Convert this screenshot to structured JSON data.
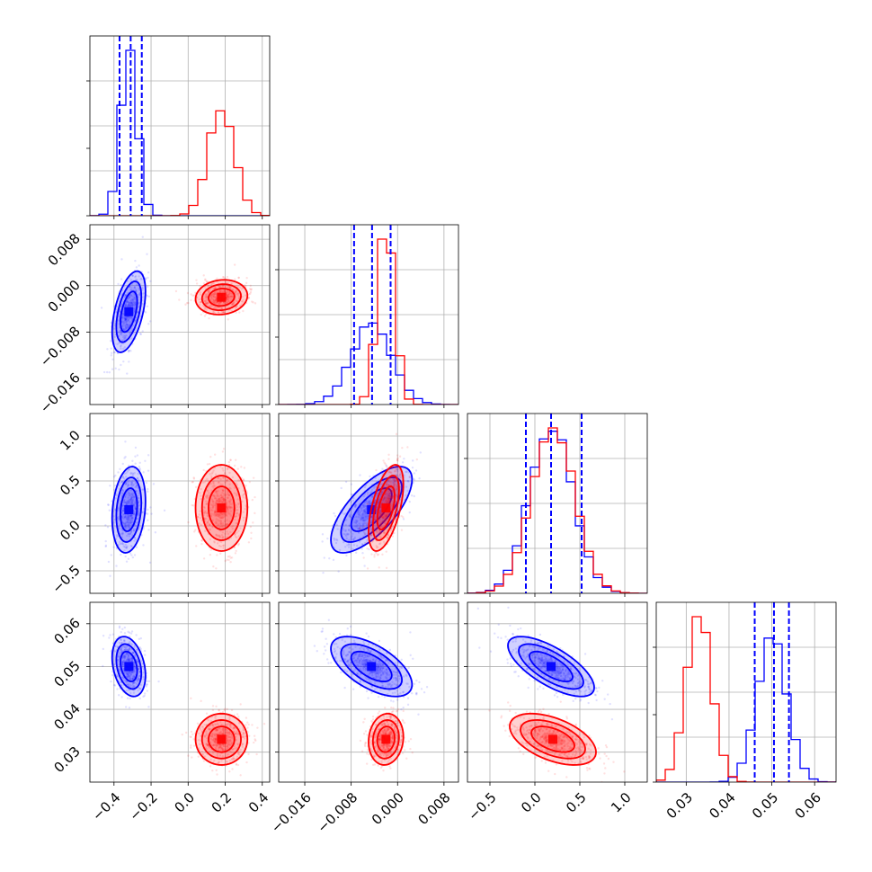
{
  "chart_data": {
    "type": "corner",
    "parameters": 4,
    "series": [
      {
        "color": "#0000ff",
        "means": [
          -0.32,
          -0.0045,
          0.18,
          0.05
        ],
        "sds": [
          0.045,
          0.0035,
          0.24,
          0.0035
        ],
        "corr": {
          "1-0": 0.5,
          "2-0": 0.2,
          "2-1": 0.7,
          "3-0": -0.3,
          "3-1": -0.6,
          "3-2": -0.7
        },
        "quantiles": [
          [
            -0.37,
            -0.31,
            -0.25
          ],
          [
            -0.0075,
            -0.0044,
            -0.0012
          ],
          [
            -0.1,
            0.18,
            0.52
          ],
          [
            0.046,
            0.0505,
            0.054
          ]
        ]
      },
      {
        "color": "#ff0000",
        "means": [
          0.18,
          -0.002,
          0.2,
          0.033
        ],
        "sds": [
          0.07,
          0.0015,
          0.24,
          0.003
        ],
        "corr": {
          "1-0": 0.1,
          "2-0": 0.0,
          "2-1": 0.55,
          "3-0": 0.0,
          "3-1": 0.1,
          "3-2": -0.5
        }
      }
    ],
    "axes": [
      {
        "lim": [
          -0.53,
          0.44
        ],
        "ticks": [
          -0.4,
          -0.2,
          0.0,
          0.2,
          0.4
        ],
        "labels": [
          "−0.4",
          "−0.2",
          "0.0",
          "0.2",
          "0.4"
        ]
      },
      {
        "lim": [
          -0.0205,
          0.0105
        ],
        "ticks": [
          -0.016,
          -0.008,
          0.0,
          0.008
        ],
        "labels": [
          "−0.016",
          "−0.008",
          "0.000",
          "0.008"
        ]
      },
      {
        "lim": [
          -0.75,
          1.25
        ],
        "ticks": [
          -0.5,
          0.0,
          0.5,
          1.0
        ],
        "labels": [
          "−0.5",
          "0.0",
          "0.5",
          "1.0"
        ]
      },
      {
        "lim": [
          0.023,
          0.065
        ],
        "ticks": [
          0.03,
          0.04,
          0.05,
          0.06
        ],
        "labels": [
          "0.03",
          "0.04",
          "0.05",
          "0.06"
        ]
      }
    ],
    "grid": true,
    "seed": 7
  }
}
